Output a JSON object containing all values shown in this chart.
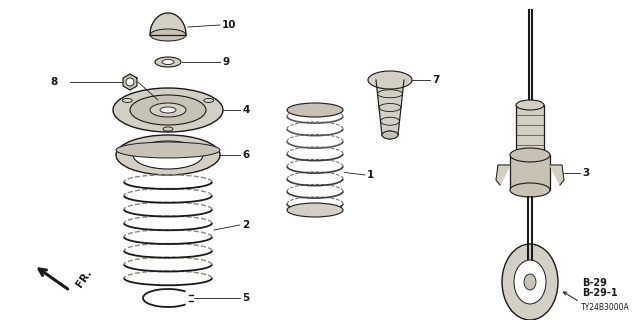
{
  "bg_color": "#ffffff",
  "lc": "#1a1a1a",
  "part_fill": "#d4cfc4",
  "part_fill2": "#c8c2b5",
  "dark_fill": "#5a5a5a",
  "spring_color": "#888878",
  "footer_b29": "B-29",
  "footer_b291": "B-29-1",
  "footer_code": "TY24B3000A",
  "fr_label": "FR."
}
